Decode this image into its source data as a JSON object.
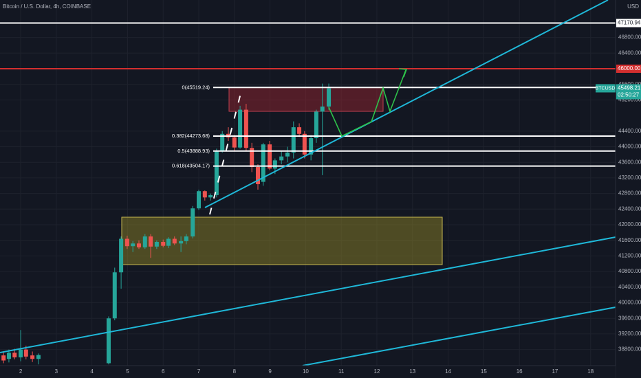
{
  "chart_data": {
    "type": "candlestick",
    "title": "Bitcoin / U.S. Dollar, 4h, COINBASE",
    "currency": "USD",
    "up_color": "#26a69a",
    "down_color": "#ef5350",
    "grid": true,
    "xlim": [
      1.42,
      18.7
    ],
    "ylim": [
      38388,
      47762
    ],
    "xticks": [
      2,
      3,
      4,
      5,
      6,
      7,
      8,
      9,
      10,
      11,
      12,
      13,
      14,
      15,
      16,
      17,
      18
    ],
    "yticks": [
      {
        "value": 46800,
        "label": "46800.00"
      },
      {
        "value": 46400,
        "label": "46400.00"
      },
      {
        "value": 45600,
        "label": "45600.00"
      },
      {
        "value": 45200,
        "label": "45200.00"
      },
      {
        "value": 44400,
        "label": "44400.00"
      },
      {
        "value": 44000,
        "label": "44000.00"
      },
      {
        "value": 43600,
        "label": "43600.00"
      },
      {
        "value": 43200,
        "label": "43200.00"
      },
      {
        "value": 42800,
        "label": "42800.00"
      },
      {
        "value": 42400,
        "label": "42400.00"
      },
      {
        "value": 42000,
        "label": "42000.00"
      },
      {
        "value": 41600,
        "label": "41600.00"
      },
      {
        "value": 41200,
        "label": "41200.00"
      },
      {
        "value": 40800,
        "label": "40800.00"
      },
      {
        "value": 40400,
        "label": "40400.00"
      },
      {
        "value": 40000,
        "label": "40000.00"
      },
      {
        "value": 39600,
        "label": "39600.00"
      },
      {
        "value": 39200,
        "label": "39200.00"
      },
      {
        "value": 38800,
        "label": "38800.00"
      }
    ],
    "x": [
      1.52,
      1.67,
      1.83,
      2.0,
      2.15,
      2.33,
      2.5,
      4.47,
      4.64,
      4.82,
      4.99,
      5.15,
      5.32,
      5.49,
      5.65,
      5.82,
      6.0,
      6.15,
      6.32,
      6.5,
      6.65,
      6.83,
      7.0,
      7.17,
      7.33,
      7.5,
      7.66,
      7.83,
      8.0,
      8.16,
      8.33,
      8.49,
      8.66,
      8.81,
      8.99,
      9.14,
      9.32,
      9.49,
      9.66,
      9.82,
      9.97,
      10.15,
      10.3,
      10.47,
      10.65
    ],
    "open": [
      38650,
      38560,
      38720,
      38600,
      38800,
      38650,
      38560,
      38450,
      39600,
      40780,
      41640,
      41450,
      41520,
      41420,
      41700,
      41440,
      41560,
      41460,
      41640,
      41520,
      41580,
      41700,
      42420,
      42860,
      42700,
      42760,
      43890,
      44330,
      44240,
      43980,
      44950,
      43970,
      43480,
      43100,
      44060,
      43440,
      43650,
      43750,
      43850,
      44500,
      44330,
      43800,
      44220,
      44900,
      45030
    ],
    "high": [
      38760,
      38800,
      38820,
      39300,
      38900,
      38750,
      38700,
      39650,
      40900,
      41700,
      41720,
      41580,
      41600,
      41760,
      41760,
      41600,
      41620,
      41680,
      41700,
      41700,
      41760,
      42480,
      42900,
      42880,
      42800,
      43950,
      44400,
      44500,
      44300,
      45050,
      45100,
      44100,
      43550,
      44100,
      44150,
      43700,
      43900,
      44000,
      44650,
      44600,
      44400,
      44300,
      44950,
      45620,
      45620
    ],
    "low": [
      38450,
      38470,
      38550,
      38500,
      38550,
      38480,
      38420,
      38420,
      39550,
      40360,
      41380,
      41300,
      41380,
      41380,
      41150,
      41380,
      41420,
      41400,
      41480,
      41300,
      41500,
      41650,
      42380,
      42620,
      42620,
      42700,
      43850,
      44150,
      43900,
      43950,
      43900,
      43350,
      42900,
      43000,
      43400,
      43300,
      43550,
      43600,
      43700,
      44250,
      43700,
      43650,
      44100,
      43270,
      44950
    ],
    "close": [
      38520,
      38720,
      38600,
      38800,
      38620,
      38560,
      38660,
      39600,
      40780,
      41640,
      41450,
      41520,
      41420,
      41700,
      41440,
      41560,
      41460,
      41640,
      41520,
      41580,
      41700,
      42420,
      42860,
      42700,
      42760,
      43890,
      44330,
      44240,
      43980,
      44950,
      43970,
      43480,
      43040,
      44060,
      43440,
      43650,
      43750,
      43850,
      44500,
      44330,
      43800,
      44220,
      44900,
      45030,
      45498
    ],
    "levels": [
      {
        "value": 47170.94,
        "color": "#ffffff",
        "text_color": "#131722"
      },
      {
        "value": 46000,
        "value_label": "46000.00",
        "color": "#d32f2f",
        "text_color": "#ffffff"
      }
    ],
    "fib_levels": [
      {
        "value": 45519.24,
        "label": "0(45519.24)"
      },
      {
        "value": 44273.68,
        "label": "0.382(44273.68)"
      },
      {
        "value": 43888.93,
        "label": "0.5(43888.93)"
      },
      {
        "value": 43504.17,
        "label": "0.618(43504.17)"
      }
    ],
    "last_price": {
      "symbol": "BTCUSD",
      "value": 45498.21,
      "countdown": "02:50:27"
    }
  }
}
